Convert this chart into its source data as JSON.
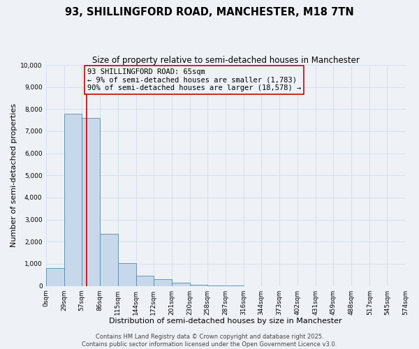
{
  "title": "93, SHILLINGFORD ROAD, MANCHESTER, M18 7TN",
  "subtitle": "Size of property relative to semi-detached houses in Manchester",
  "xlabel": "Distribution of semi-detached houses by size in Manchester",
  "ylabel": "Number of semi-detached properties",
  "bar_heights": [
    800,
    7800,
    7600,
    2350,
    1020,
    470,
    290,
    140,
    50,
    10,
    5,
    0,
    0,
    0,
    0,
    0,
    0,
    0,
    0,
    0
  ],
  "bin_edges": [
    0,
    29,
    57,
    86,
    115,
    144,
    172,
    201,
    230,
    258,
    287,
    316,
    344,
    373,
    402,
    431,
    459,
    488,
    517,
    545,
    574
  ],
  "bar_color": "#c8d8eb",
  "bar_edgecolor": "#5588aa",
  "vline_x": 65,
  "vline_color": "#cc0000",
  "annotation_text": "93 SHILLINGFORD ROAD: 65sqm\n← 9% of semi-detached houses are smaller (1,783)\n90% of semi-detached houses are larger (18,578) →",
  "annotation_box_edgecolor": "#cc0000",
  "ylim": [
    0,
    10000
  ],
  "yticks": [
    0,
    1000,
    2000,
    3000,
    4000,
    5000,
    6000,
    7000,
    8000,
    9000,
    10000
  ],
  "xtick_labels": [
    "0sqm",
    "29sqm",
    "57sqm",
    "86sqm",
    "115sqm",
    "144sqm",
    "172sqm",
    "201sqm",
    "230sqm",
    "258sqm",
    "287sqm",
    "316sqm",
    "344sqm",
    "373sqm",
    "402sqm",
    "431sqm",
    "459sqm",
    "488sqm",
    "517sqm",
    "545sqm",
    "574sqm"
  ],
  "footer_text": "Contains HM Land Registry data © Crown copyright and database right 2025.\nContains public sector information licensed under the Open Government Licence v3.0.",
  "bg_color": "#eef2f7",
  "grid_color": "#d8e0ea",
  "title_fontsize": 10.5,
  "subtitle_fontsize": 8.5,
  "axis_label_fontsize": 8,
  "tick_fontsize": 6.5,
  "footer_fontsize": 6,
  "annotation_fontsize": 7.5
}
